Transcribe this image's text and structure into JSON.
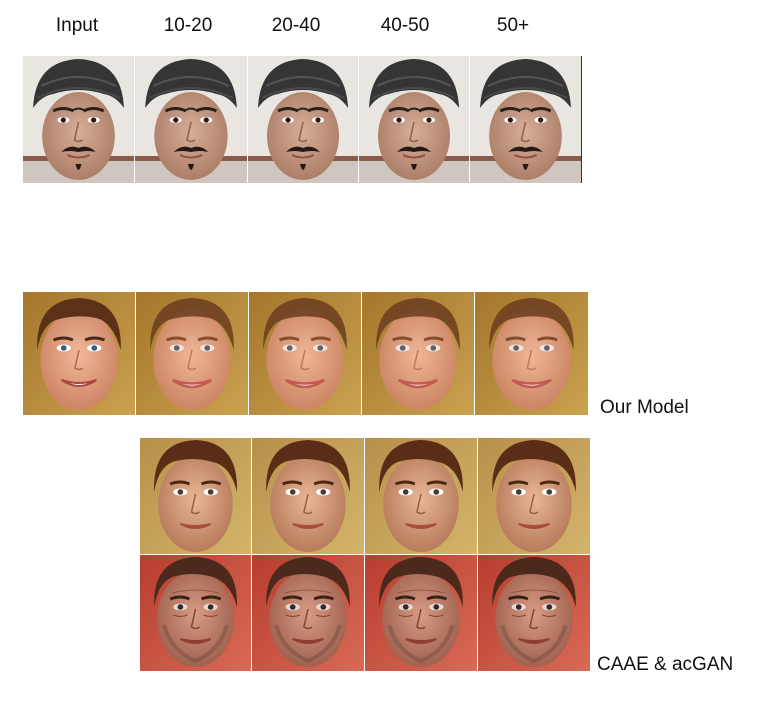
{
  "headers": {
    "input": "Input",
    "age_10_20": "10-20",
    "age_20_40": "20-40",
    "age_40_50": "40-50",
    "age_50_plus": "50+"
  },
  "captions": {
    "our_model": "Our Model",
    "caae_acgan": "CAAE & acGAN"
  },
  "colors": {
    "turban": "#353535",
    "skin_row1": "#c79c86",
    "bg_row1": "#e9e6e2",
    "skin_row2": "#e3a587",
    "bg_row2": "#b8903d",
    "hair": "#5b3218",
    "bg_row4": "#c24a3a"
  }
}
